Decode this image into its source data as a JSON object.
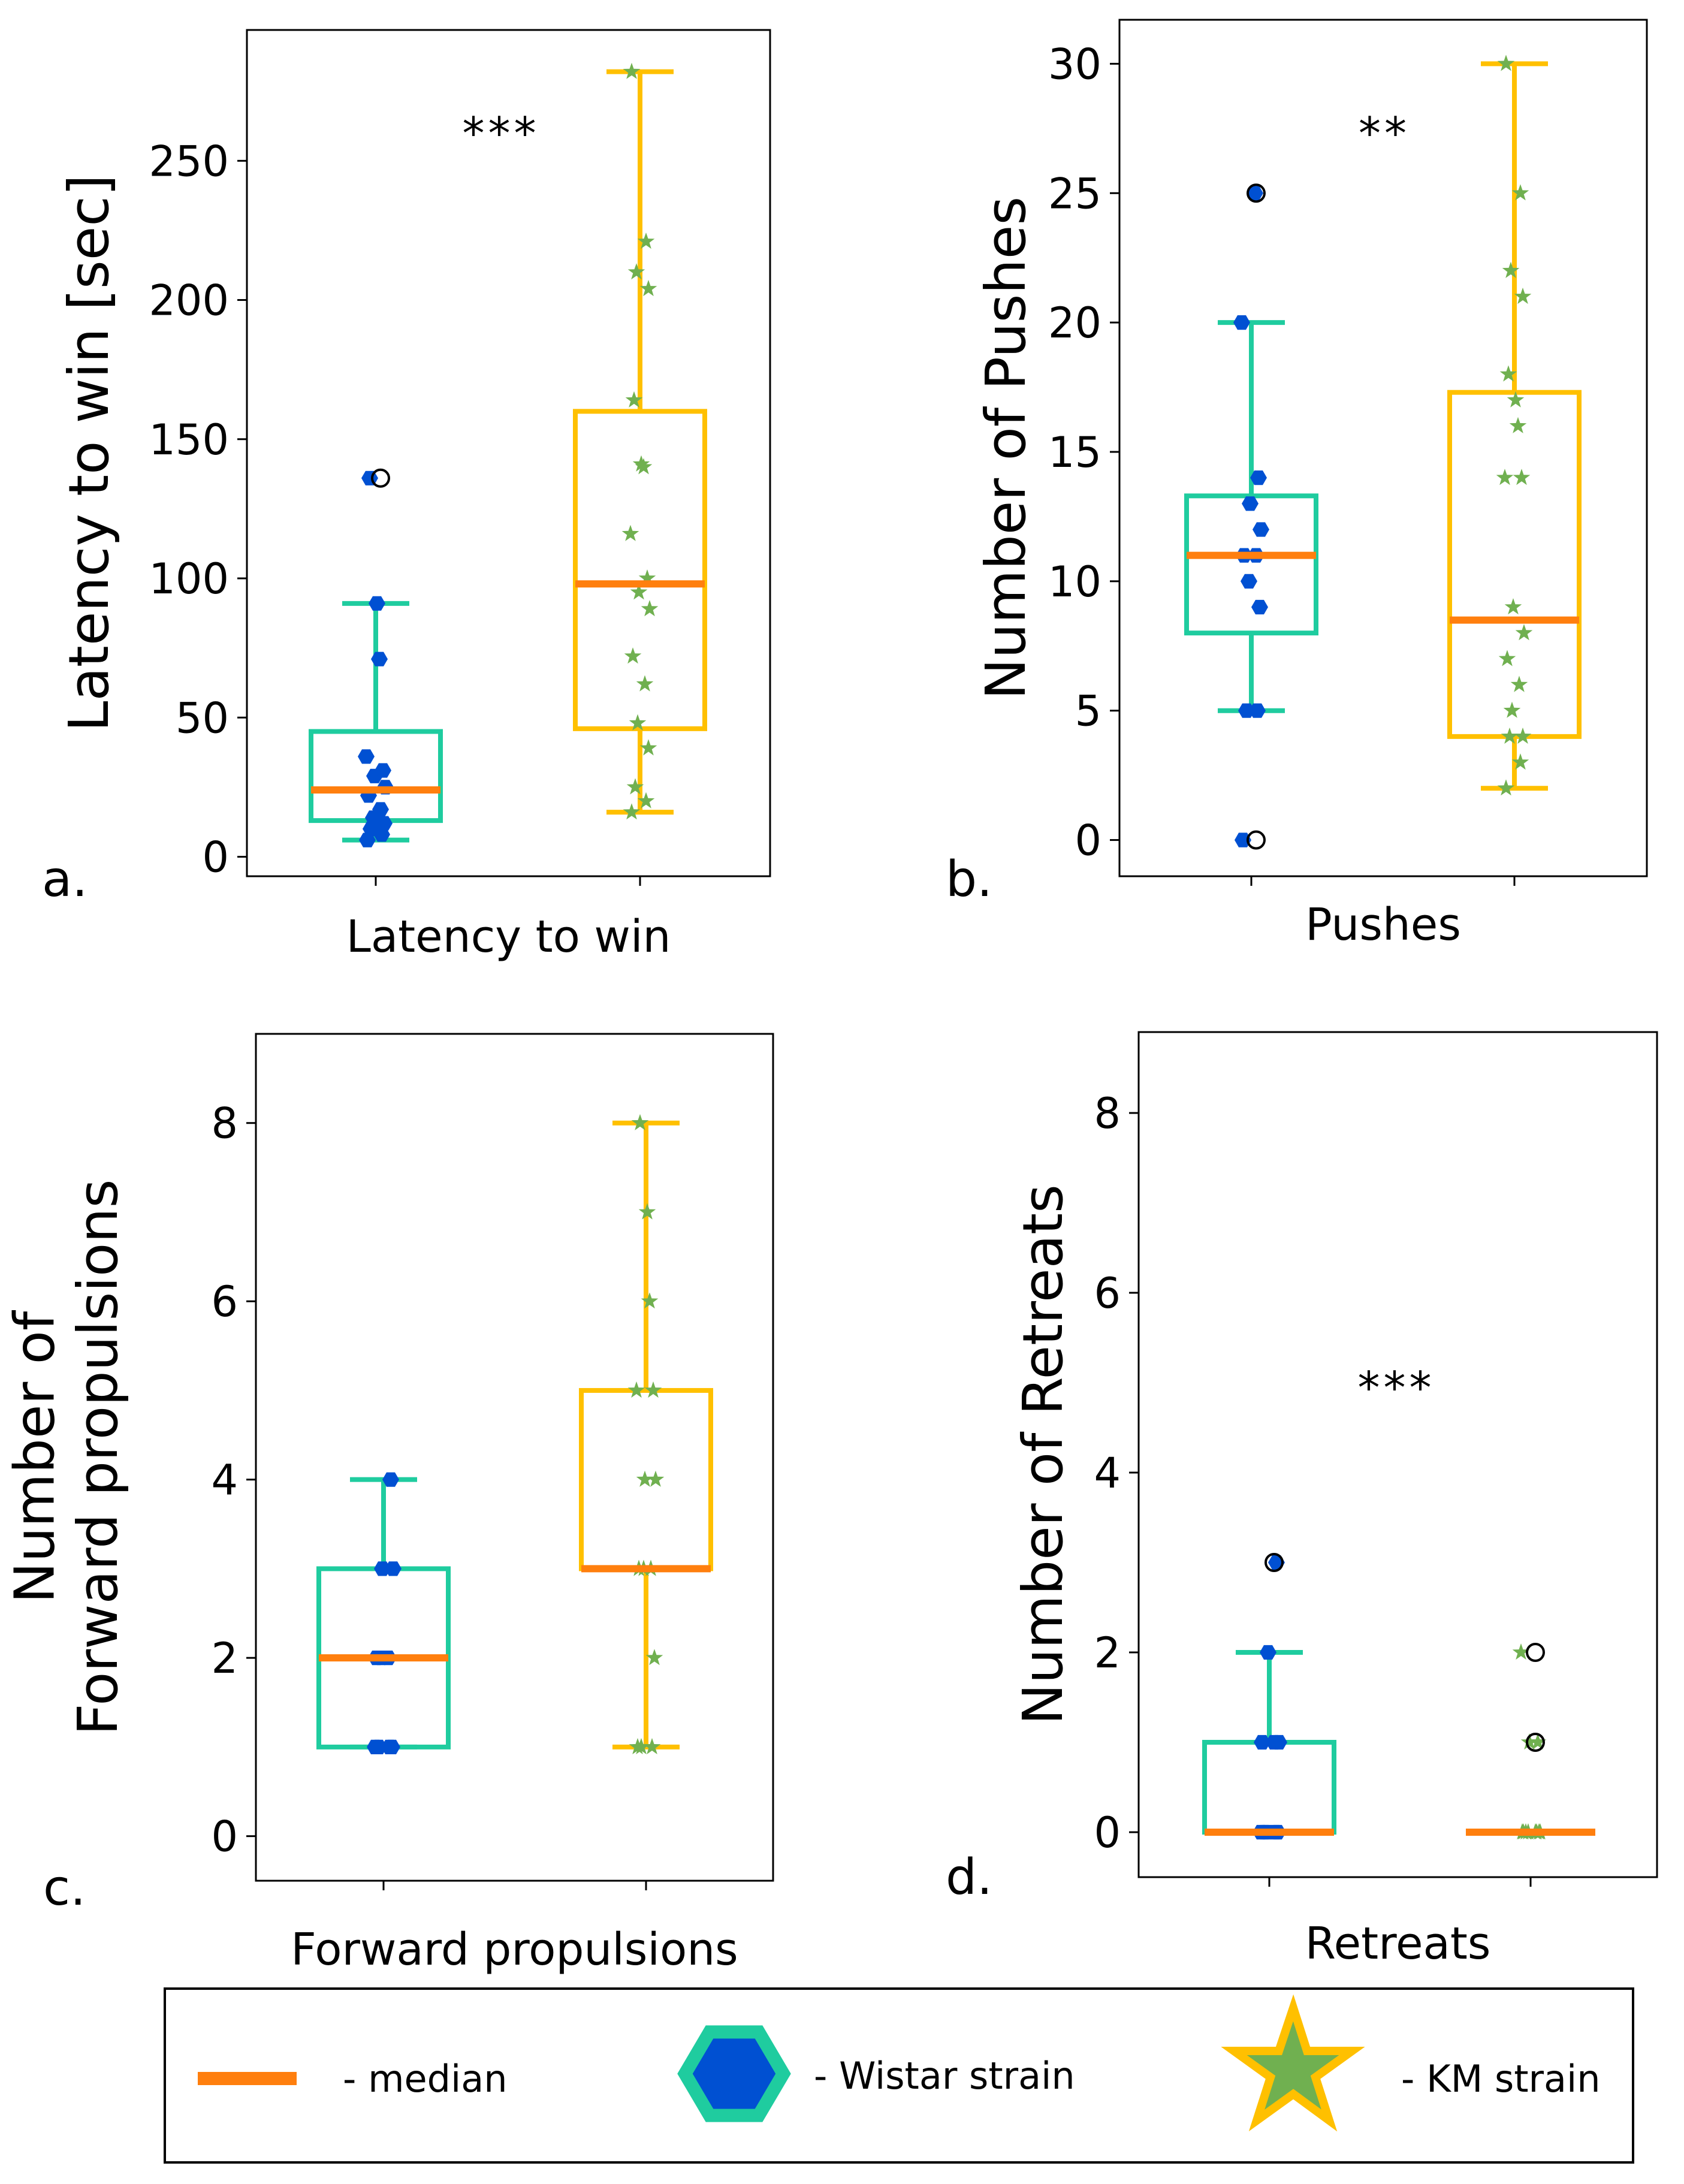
{
  "colors": {
    "median": "#ff7f0e",
    "wistar_box": "#1fcc9f",
    "wistar_point": "#0050d2",
    "km_box": "#ffc000",
    "km_point": "#70b050"
  },
  "legend": {
    "median": "- median",
    "wistar": "- Wistar strain",
    "km": "- KM strain"
  },
  "chart_data": [
    {
      "type": "box",
      "panel_label": "a.",
      "xlabel": "Latency to win",
      "ylabel": "Latency to win [sec]",
      "ylim": [
        -7,
        297
      ],
      "yticks": [
        0,
        50,
        100,
        150,
        200,
        250
      ],
      "significance": "***",
      "groups": [
        {
          "name": "Wistar strain",
          "q1": 13,
          "median": 24,
          "q3": 45,
          "whisker_low": 6,
          "whisker_high": 91,
          "outliers": [
            136
          ],
          "points": [
            6,
            8,
            10,
            12,
            14,
            17,
            22,
            25,
            29,
            31,
            36,
            71,
            91,
            136
          ]
        },
        {
          "name": "KM strain",
          "q1": 46,
          "median": 98,
          "q3": 160,
          "whisker_low": 16,
          "whisker_high": 282,
          "outliers": [],
          "points": [
            16,
            20,
            25,
            39,
            48,
            62,
            72,
            89,
            95,
            100,
            116,
            140,
            141,
            164,
            204,
            210,
            221,
            282
          ]
        }
      ]
    },
    {
      "type": "box",
      "panel_label": "b.",
      "xlabel": "Pushes",
      "ylabel": "Number of Pushes",
      "ylim": [
        -1.4,
        31.7
      ],
      "yticks": [
        0,
        5,
        10,
        15,
        20,
        25,
        30
      ],
      "significance": "**",
      "groups": [
        {
          "name": "Wistar strain",
          "q1": 8,
          "median": 11,
          "q3": 13.3,
          "whisker_low": 5,
          "whisker_high": 20,
          "outliers": [
            0,
            25
          ],
          "points": [
            0,
            5,
            5,
            9,
            10,
            11,
            11,
            12,
            13,
            14,
            20,
            25
          ]
        },
        {
          "name": "KM strain",
          "q1": 4,
          "median": 8.5,
          "q3": 17.3,
          "whisker_low": 2,
          "whisker_high": 30,
          "outliers": [],
          "points": [
            2,
            3,
            4,
            4,
            5,
            6,
            7,
            8,
            9,
            14,
            14,
            16,
            17,
            18,
            21,
            22,
            25,
            30
          ]
        }
      ]
    },
    {
      "type": "box",
      "panel_label": "c.",
      "xlabel": "Forward propulsions",
      "ylabel": [
        "Number of",
        "Forward propulsions"
      ],
      "ylim": [
        -0.5,
        9.0
      ],
      "yticks": [
        0,
        2,
        4,
        6,
        8
      ],
      "significance": "",
      "groups": [
        {
          "name": "Wistar strain",
          "q1": 1,
          "median": 2,
          "q3": 3,
          "whisker_low": 1,
          "whisker_high": 4,
          "outliers": [],
          "points": [
            1,
            1,
            1,
            1,
            2,
            2,
            2,
            3,
            3,
            4
          ]
        },
        {
          "name": "KM strain",
          "q1": 3,
          "median": 3,
          "q3": 5,
          "whisker_low": 1,
          "whisker_high": 8,
          "outliers": [],
          "points": [
            1,
            1,
            1,
            2,
            3,
            3,
            3,
            4,
            4,
            5,
            5,
            6,
            7,
            8
          ]
        }
      ]
    },
    {
      "type": "box",
      "panel_label": "d.",
      "xlabel": "Retreats",
      "ylabel": "Number of Retreats",
      "ylim": [
        -0.5,
        8.9
      ],
      "yticks": [
        0,
        2,
        4,
        6,
        8
      ],
      "significance": "***",
      "groups": [
        {
          "name": "Wistar strain",
          "q1": 0,
          "median": 0,
          "q3": 1,
          "whisker_low": 0,
          "whisker_high": 2,
          "outliers": [
            3
          ],
          "points": [
            0,
            0,
            0,
            0,
            0,
            1,
            1,
            1,
            2,
            3
          ]
        },
        {
          "name": "KM strain",
          "q1": 0,
          "median": 0,
          "q3": 0,
          "whisker_low": 0,
          "whisker_high": 0,
          "outliers": [
            1,
            2
          ],
          "points": [
            0,
            0,
            0,
            0,
            0,
            0,
            0,
            0,
            1,
            1,
            2
          ]
        }
      ]
    }
  ]
}
